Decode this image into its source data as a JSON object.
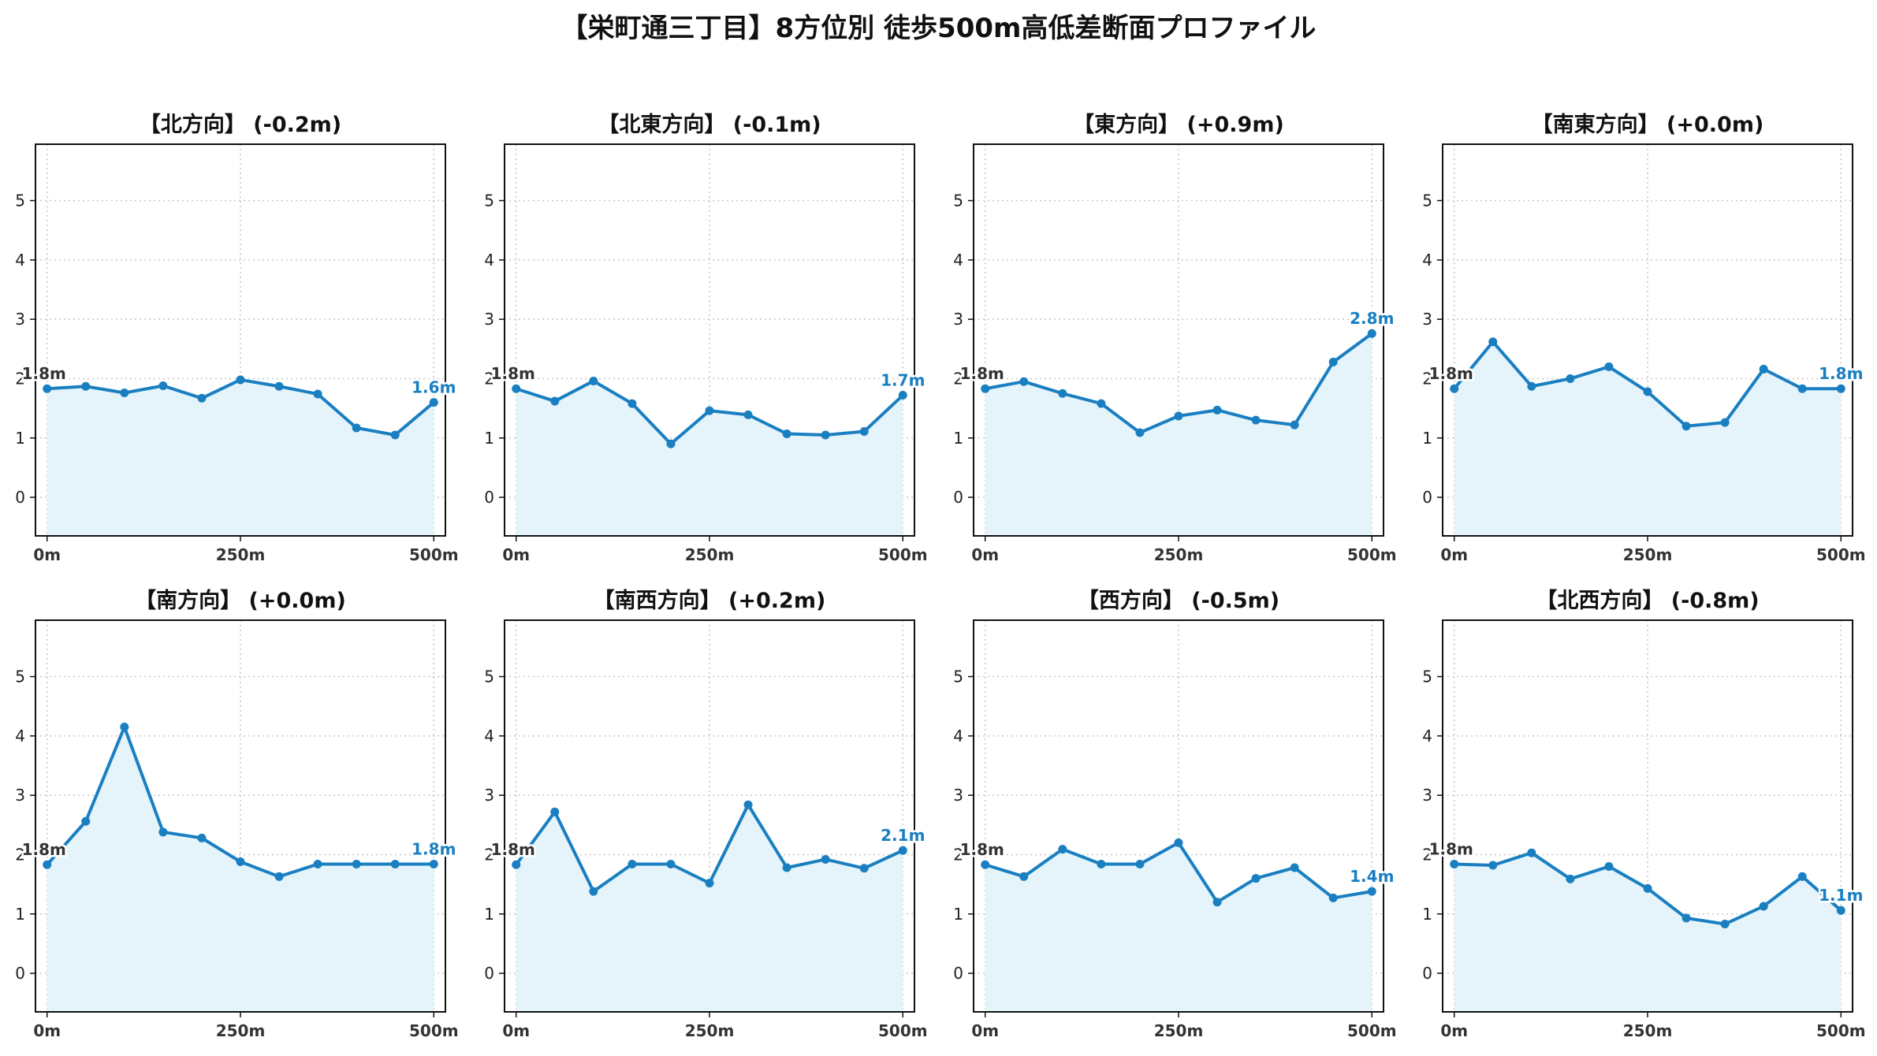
{
  "title": "【栄町通三丁目】8方位別 徒歩500m高低差断面プロファイル",
  "colors": {
    "line": "#1a7fc1",
    "fill": "#e5f4fb",
    "grid": "#c8c8c8"
  },
  "chart_data": [
    {
      "type": "area",
      "title": "【北方向】 (-0.2m)",
      "x": [
        0,
        50,
        100,
        150,
        200,
        250,
        300,
        350,
        400,
        450,
        500
      ],
      "values": [
        1.83,
        1.87,
        1.76,
        1.88,
        1.67,
        1.98,
        1.87,
        1.74,
        1.17,
        1.05,
        1.6
      ],
      "start_label": "1.8m",
      "end_label": "1.6m",
      "xticks": [
        "0m",
        "250m",
        "500m"
      ],
      "yticks": [
        0,
        1,
        2,
        3,
        4,
        5
      ],
      "ylim": [
        -0.65,
        5.95
      ],
      "xlim": [
        -15,
        515
      ],
      "grid": true
    },
    {
      "type": "area",
      "title": "【北東方向】 (-0.1m)",
      "x": [
        0,
        50,
        100,
        150,
        200,
        250,
        300,
        350,
        400,
        450,
        500
      ],
      "values": [
        1.83,
        1.62,
        1.96,
        1.58,
        0.9,
        1.46,
        1.39,
        1.07,
        1.05,
        1.11,
        1.72
      ],
      "start_label": "1.8m",
      "end_label": "1.7m",
      "xticks": [
        "0m",
        "250m",
        "500m"
      ],
      "yticks": [
        0,
        1,
        2,
        3,
        4,
        5
      ],
      "ylim": [
        -0.65,
        5.95
      ],
      "xlim": [
        -15,
        515
      ],
      "grid": true
    },
    {
      "type": "area",
      "title": "【東方向】 (+0.9m)",
      "x": [
        0,
        50,
        100,
        150,
        200,
        250,
        300,
        350,
        400,
        450,
        500
      ],
      "values": [
        1.83,
        1.95,
        1.75,
        1.58,
        1.09,
        1.37,
        1.47,
        1.3,
        1.22,
        2.28,
        2.76
      ],
      "start_label": "1.8m",
      "end_label": "2.8m",
      "xticks": [
        "0m",
        "250m",
        "500m"
      ],
      "yticks": [
        0,
        1,
        2,
        3,
        4,
        5
      ],
      "ylim": [
        -0.65,
        5.95
      ],
      "xlim": [
        -15,
        515
      ],
      "grid": true
    },
    {
      "type": "area",
      "title": "【南東方向】 (+0.0m)",
      "x": [
        0,
        50,
        100,
        150,
        200,
        250,
        300,
        350,
        400,
        450,
        500
      ],
      "values": [
        1.83,
        2.62,
        1.87,
        2.0,
        2.2,
        1.78,
        1.2,
        1.26,
        2.16,
        1.83,
        1.83
      ],
      "start_label": "1.8m",
      "end_label": "1.8m",
      "xticks": [
        "0m",
        "250m",
        "500m"
      ],
      "yticks": [
        0,
        1,
        2,
        3,
        4,
        5
      ],
      "ylim": [
        -0.65,
        5.95
      ],
      "xlim": [
        -15,
        515
      ],
      "grid": true
    },
    {
      "type": "area",
      "title": "【南方向】 (+0.0m)",
      "x": [
        0,
        50,
        100,
        150,
        200,
        250,
        300,
        350,
        400,
        450,
        500
      ],
      "values": [
        1.83,
        2.56,
        4.15,
        2.38,
        2.28,
        1.88,
        1.63,
        1.84,
        1.84,
        1.84,
        1.84
      ],
      "start_label": "1.8m",
      "end_label": "1.8m",
      "xticks": [
        "0m",
        "250m",
        "500m"
      ],
      "yticks": [
        0,
        1,
        2,
        3,
        4,
        5
      ],
      "ylim": [
        -0.65,
        5.95
      ],
      "xlim": [
        -15,
        515
      ],
      "grid": true
    },
    {
      "type": "area",
      "title": "【南西方向】 (+0.2m)",
      "x": [
        0,
        50,
        100,
        150,
        200,
        250,
        300,
        350,
        400,
        450,
        500
      ],
      "values": [
        1.83,
        2.72,
        1.38,
        1.84,
        1.84,
        1.52,
        2.84,
        1.78,
        1.92,
        1.77,
        2.07
      ],
      "start_label": "1.8m",
      "end_label": "2.1m",
      "xticks": [
        "0m",
        "250m",
        "500m"
      ],
      "yticks": [
        0,
        1,
        2,
        3,
        4,
        5
      ],
      "ylim": [
        -0.65,
        5.95
      ],
      "xlim": [
        -15,
        515
      ],
      "grid": true
    },
    {
      "type": "area",
      "title": "【西方向】 (-0.5m)",
      "x": [
        0,
        50,
        100,
        150,
        200,
        250,
        300,
        350,
        400,
        450,
        500
      ],
      "values": [
        1.83,
        1.63,
        2.09,
        1.84,
        1.84,
        2.2,
        1.2,
        1.6,
        1.78,
        1.27,
        1.38
      ],
      "start_label": "1.8m",
      "end_label": "1.4m",
      "xticks": [
        "0m",
        "250m",
        "500m"
      ],
      "yticks": [
        0,
        1,
        2,
        3,
        4,
        5
      ],
      "ylim": [
        -0.65,
        5.95
      ],
      "xlim": [
        -15,
        515
      ],
      "grid": true
    },
    {
      "type": "area",
      "title": "【北西方向】 (-0.8m)",
      "x": [
        0,
        50,
        100,
        150,
        200,
        250,
        300,
        350,
        400,
        450,
        500
      ],
      "values": [
        1.84,
        1.82,
        2.03,
        1.59,
        1.8,
        1.43,
        0.93,
        0.83,
        1.13,
        1.63,
        1.06
      ],
      "start_label": "1.8m",
      "end_label": "1.1m",
      "xticks": [
        "0m",
        "250m",
        "500m"
      ],
      "yticks": [
        0,
        1,
        2,
        3,
        4,
        5
      ],
      "ylim": [
        -0.65,
        5.95
      ],
      "xlim": [
        -15,
        515
      ],
      "grid": true
    }
  ]
}
